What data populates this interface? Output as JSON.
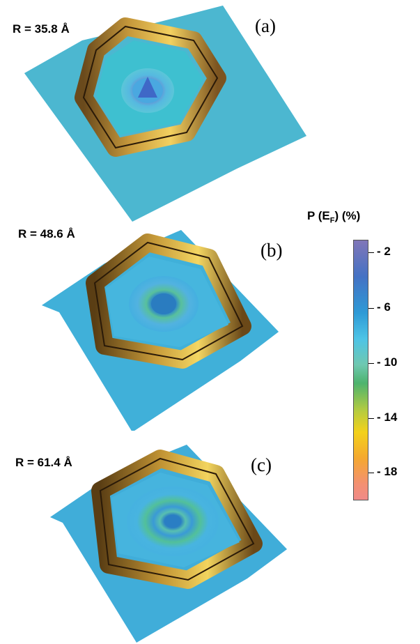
{
  "panels": [
    {
      "id": "a",
      "radius_label": "R = 35.8 Å",
      "panel_label": "(a)"
    },
    {
      "id": "b",
      "radius_label": "R = 48.6 Å",
      "panel_label": "(b)"
    },
    {
      "id": "c",
      "radius_label": "R = 61.4 Å",
      "panel_label": "(c)"
    }
  ],
  "colorbar": {
    "title_prefix": "P (E",
    "title_sub": "F",
    "title_suffix": ") (%)",
    "ticks": [
      "- 2",
      "- 6",
      "- 10",
      "- 14",
      "- 18"
    ],
    "colors": [
      "#8076b8",
      "#4472c4",
      "#2e9ad6",
      "#4ec4e6",
      "#4db36e",
      "#f3d11a",
      "#f4a830",
      "#f08a88"
    ]
  }
}
